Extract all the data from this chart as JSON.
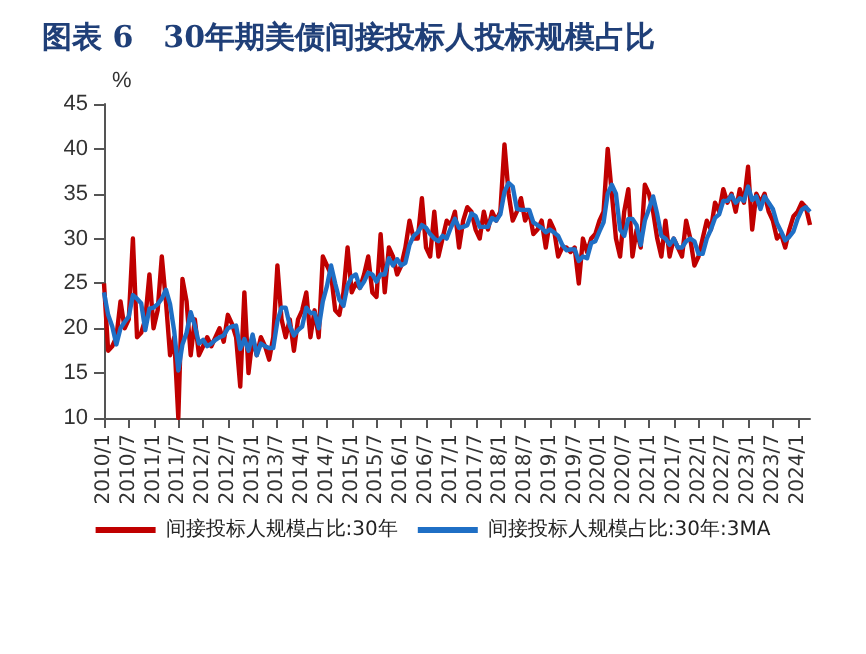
{
  "chart_data": {
    "type": "line",
    "title": "图表 6　30年期美债间接投标人投标规模占比",
    "ylabel": "%",
    "ylim": [
      10,
      45
    ],
    "yticks": [
      10,
      15,
      20,
      25,
      30,
      35,
      40,
      45
    ],
    "grid": false,
    "legend": "bottom",
    "marker": "none",
    "categories": [
      "2010/1",
      null,
      null,
      null,
      null,
      null,
      "2010/7",
      null,
      null,
      null,
      null,
      null,
      "2011/1",
      null,
      null,
      null,
      null,
      null,
      "2011/7",
      null,
      null,
      null,
      null,
      null,
      "2012/1",
      null,
      null,
      null,
      null,
      null,
      "2012/7",
      null,
      null,
      null,
      null,
      null,
      "2013/1",
      null,
      null,
      null,
      null,
      null,
      "2013/7",
      null,
      null,
      null,
      null,
      null,
      "2014/1",
      null,
      null,
      null,
      null,
      null,
      "2014/7",
      null,
      null,
      null,
      null,
      null,
      "2015/1",
      null,
      null,
      null,
      null,
      null,
      "2015/7",
      null,
      null,
      null,
      null,
      null,
      "2016/1",
      null,
      null,
      null,
      null,
      null,
      "2016/7",
      null,
      null,
      null,
      null,
      null,
      "2017/1",
      null,
      null,
      null,
      null,
      null,
      "2017/7",
      null,
      null,
      null,
      null,
      null,
      "2018/1",
      null,
      null,
      null,
      null,
      null,
      "2018/7",
      null,
      null,
      null,
      null,
      null,
      "2019/1",
      null,
      null,
      null,
      null,
      null,
      "2019/7",
      null,
      null,
      null,
      null,
      null,
      "2020/1",
      null,
      null,
      null,
      null,
      null,
      "2020/7",
      null,
      null,
      null,
      null,
      null,
      "2021/1",
      null,
      null,
      null,
      null,
      null,
      "2021/7",
      null,
      null,
      null,
      null,
      null,
      "2022/1",
      null,
      null,
      null,
      null,
      null,
      "2022/7",
      null,
      null,
      null,
      null,
      null,
      "2023/1",
      null,
      null,
      null,
      null,
      null,
      "2023/7",
      null,
      null,
      null,
      null,
      null,
      "2024/1",
      null,
      null,
      null
    ],
    "series": [
      {
        "name": "间接投标人规模占比:30年",
        "color": "#c00000",
        "values": [
          25,
          17.5,
          18,
          19,
          23,
          20,
          21,
          30,
          19,
          19.5,
          21,
          26,
          20,
          22,
          28,
          23,
          17,
          19,
          10,
          25.5,
          23,
          17,
          21,
          17,
          18,
          19,
          18,
          19,
          20,
          18.5,
          21.5,
          20.5,
          19,
          13.5,
          24,
          15,
          19,
          17,
          19,
          18,
          16.5,
          19,
          27,
          21,
          19,
          21,
          17.5,
          21,
          22,
          24,
          19,
          22,
          19,
          28,
          27,
          26,
          22,
          21.5,
          24,
          29,
          24,
          25,
          24.5,
          26,
          28,
          24,
          23.5,
          30.5,
          24,
          29,
          28,
          26,
          27,
          29,
          32,
          30,
          30,
          34.5,
          29,
          28,
          33,
          28,
          30,
          32,
          31.5,
          33,
          29,
          32,
          33.5,
          33,
          31,
          30,
          33,
          31,
          33,
          32,
          33,
          40.5,
          35,
          32,
          33,
          34.5,
          32,
          33,
          30.5,
          31,
          32,
          29,
          32,
          31,
          28,
          29,
          29,
          28.5,
          29,
          25,
          30,
          28.5,
          30,
          30.5,
          32,
          33,
          40,
          35,
          30,
          28,
          33,
          35.5,
          28,
          31,
          29,
          36,
          35,
          33,
          30,
          28,
          32,
          28,
          30,
          29,
          28,
          32,
          30,
          27,
          28,
          30,
          32,
          31,
          34,
          33,
          35.5,
          34,
          35,
          33,
          35.5,
          34,
          38,
          31,
          35,
          34,
          35,
          33,
          32,
          30,
          30.5,
          29,
          31,
          32.5,
          33,
          34,
          33.5,
          31.5
        ]
      },
      {
        "name": "间接投标人规模占比:30年:3MA",
        "color": "#1f6fc5",
        "values": [
          24,
          21.5,
          20.2,
          18.2,
          20,
          20.7,
          21.3,
          23.7,
          23.3,
          22.8,
          19.8,
          22.2,
          22.3,
          22.7,
          23.3,
          24.3,
          22.7,
          19.7,
          15.3,
          18.2,
          19.5,
          21.8,
          20.3,
          18.3,
          18.7,
          18,
          18.3,
          18.7,
          19,
          19.2,
          20,
          20.2,
          20.3,
          17.7,
          18.8,
          17.5,
          19.3,
          17,
          18.3,
          18,
          17.8,
          17.8,
          20.8,
          22.3,
          22.3,
          20.3,
          19.2,
          19.8,
          20.2,
          22.3,
          21.7,
          21.7,
          20,
          23,
          24.7,
          27,
          25,
          23.2,
          22.5,
          24.8,
          25.7,
          26,
          24.5,
          25.2,
          26.2,
          26,
          25.2,
          26,
          26,
          27.8,
          27,
          27.7,
          27,
          27.3,
          29.3,
          30.3,
          30.7,
          31.5,
          31.2,
          30.5,
          30,
          29.7,
          30.3,
          30,
          31.2,
          32.2,
          31.2,
          31.3,
          31.5,
          32.8,
          32.5,
          31.3,
          31.3,
          31.3,
          32.3,
          32,
          32.7,
          35.2,
          36.2,
          35.8,
          33.3,
          33.2,
          33.2,
          33.2,
          31.8,
          31.5,
          31.2,
          30.7,
          31,
          30.7,
          30.3,
          29.3,
          28.7,
          28.8,
          28.8,
          27.5,
          28,
          27.8,
          29.5,
          29.7,
          30.8,
          31.8,
          35,
          36,
          35,
          31,
          30.3,
          32.2,
          32.2,
          31.5,
          29.3,
          32,
          33.3,
          34.7,
          32.7,
          30.3,
          30,
          29.3,
          30,
          29,
          29,
          29.7,
          30,
          29.7,
          28.3,
          28.3,
          30,
          31,
          32.3,
          32.7,
          34.2,
          34.2,
          34.8,
          34,
          34.5,
          34.2,
          35.8,
          34.3,
          34.7,
          33.3,
          34.7,
          34,
          33.3,
          31.7,
          30.8,
          29.8,
          30.2,
          30.8,
          32.2,
          33.2,
          33.5,
          33
        ]
      }
    ]
  }
}
